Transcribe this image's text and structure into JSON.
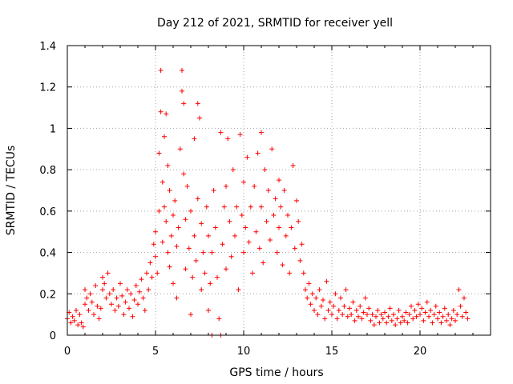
{
  "chart_data": {
    "type": "scatter",
    "title": "Day 212 of 2021, SRMTID for receiver yell",
    "xlabel": "GPS time / hours",
    "ylabel": "SRMTID / TECUs",
    "xlim": [
      0,
      24
    ],
    "ylim": [
      0,
      1.4
    ],
    "x_ticks": [
      0,
      5,
      10,
      15,
      20
    ],
    "y_ticks": [
      0,
      0.2,
      0.4,
      0.6,
      0.8,
      1,
      1.2,
      1.4
    ],
    "x_tick_labels": [
      "0",
      "5",
      "10",
      "15",
      "20"
    ],
    "y_tick_labels": [
      "0",
      "0.2",
      "0.4",
      "0.6",
      "0.8",
      "1",
      "1.2",
      "1.4"
    ],
    "grid": true,
    "marker": "plus",
    "color": "#ff0000",
    "series": [
      {
        "name": "SRMTID",
        "points": [
          [
            0.0,
            0.08
          ],
          [
            0.1,
            0.11
          ],
          [
            0.2,
            0.06
          ],
          [
            0.3,
            0.09
          ],
          [
            0.4,
            0.07
          ],
          [
            0.5,
            0.12
          ],
          [
            0.6,
            0.05
          ],
          [
            0.7,
            0.1
          ],
          [
            0.8,
            0.06
          ],
          [
            0.9,
            0.04
          ],
          [
            1.0,
            0.15
          ],
          [
            1.0,
            0.22
          ],
          [
            1.1,
            0.18
          ],
          [
            1.2,
            0.12
          ],
          [
            1.3,
            0.2
          ],
          [
            1.4,
            0.16
          ],
          [
            1.5,
            0.1
          ],
          [
            1.6,
            0.24
          ],
          [
            1.7,
            0.14
          ],
          [
            1.8,
            0.08
          ],
          [
            1.9,
            0.13
          ],
          [
            2.0,
            0.22
          ],
          [
            2.0,
            0.28
          ],
          [
            2.1,
            0.25
          ],
          [
            2.2,
            0.18
          ],
          [
            2.3,
            0.3
          ],
          [
            2.4,
            0.2
          ],
          [
            2.5,
            0.15
          ],
          [
            2.6,
            0.22
          ],
          [
            2.7,
            0.12
          ],
          [
            2.8,
            0.18
          ],
          [
            2.9,
            0.14
          ],
          [
            3.0,
            0.25
          ],
          [
            3.1,
            0.19
          ],
          [
            3.2,
            0.1
          ],
          [
            3.3,
            0.16
          ],
          [
            3.4,
            0.22
          ],
          [
            3.5,
            0.13
          ],
          [
            3.6,
            0.2
          ],
          [
            3.7,
            0.09
          ],
          [
            3.8,
            0.17
          ],
          [
            3.9,
            0.24
          ],
          [
            4.0,
            0.15
          ],
          [
            4.1,
            0.21
          ],
          [
            4.2,
            0.27
          ],
          [
            4.3,
            0.18
          ],
          [
            4.4,
            0.12
          ],
          [
            4.5,
            0.3
          ],
          [
            4.6,
            0.22
          ],
          [
            4.7,
            0.35
          ],
          [
            4.8,
            0.28
          ],
          [
            4.9,
            0.44
          ],
          [
            5.0,
            0.5
          ],
          [
            5.0,
            0.38
          ],
          [
            5.1,
            0.3
          ],
          [
            5.2,
            0.6
          ],
          [
            5.2,
            0.88
          ],
          [
            5.3,
            1.28
          ],
          [
            5.3,
            1.08
          ],
          [
            5.4,
            0.74
          ],
          [
            5.4,
            0.45
          ],
          [
            5.5,
            0.96
          ],
          [
            5.5,
            0.62
          ],
          [
            5.6,
            1.07
          ],
          [
            5.6,
            0.55
          ],
          [
            5.7,
            0.82
          ],
          [
            5.7,
            0.4
          ],
          [
            5.8,
            0.7
          ],
          [
            5.8,
            0.33
          ],
          [
            5.9,
            0.48
          ],
          [
            6.0,
            0.58
          ],
          [
            6.0,
            0.25
          ],
          [
            6.1,
            0.65
          ],
          [
            6.2,
            0.43
          ],
          [
            6.2,
            0.18
          ],
          [
            6.3,
            0.52
          ],
          [
            6.4,
            0.9
          ],
          [
            6.5,
            1.28
          ],
          [
            6.5,
            1.18
          ],
          [
            6.6,
            1.12
          ],
          [
            6.6,
            0.78
          ],
          [
            6.7,
            0.56
          ],
          [
            6.7,
            0.32
          ],
          [
            6.8,
            0.72
          ],
          [
            6.9,
            0.42
          ],
          [
            7.0,
            0.6
          ],
          [
            7.0,
            0.1
          ],
          [
            7.1,
            0.28
          ],
          [
            7.2,
            0.95
          ],
          [
            7.2,
            0.48
          ],
          [
            7.3,
            0.36
          ],
          [
            7.4,
            1.12
          ],
          [
            7.4,
            0.66
          ],
          [
            7.5,
            1.05
          ],
          [
            7.6,
            0.54
          ],
          [
            7.6,
            0.22
          ],
          [
            7.7,
            0.4
          ],
          [
            7.8,
            0.3
          ],
          [
            7.9,
            0.62
          ],
          [
            8.0,
            0.48
          ],
          [
            8.0,
            0.12
          ],
          [
            8.1,
            0.25
          ],
          [
            8.2,
            0.0
          ],
          [
            8.2,
            0.4
          ],
          [
            8.3,
            0.7
          ],
          [
            8.4,
            0.52
          ],
          [
            8.5,
            0.28
          ],
          [
            8.6,
            0.08
          ],
          [
            8.7,
            0.98
          ],
          [
            8.7,
            0.0
          ],
          [
            8.8,
            0.44
          ],
          [
            8.9,
            0.62
          ],
          [
            9.0,
            0.72
          ],
          [
            9.0,
            0.32
          ],
          [
            9.1,
            0.95
          ],
          [
            9.2,
            0.55
          ],
          [
            9.3,
            0.38
          ],
          [
            9.4,
            0.8
          ],
          [
            9.5,
            0.48
          ],
          [
            9.6,
            0.62
          ],
          [
            9.7,
            0.22
          ],
          [
            9.8,
            0.97
          ],
          [
            9.9,
            0.58
          ],
          [
            10.0,
            0.74
          ],
          [
            10.0,
            0.4
          ],
          [
            10.1,
            0.52
          ],
          [
            10.2,
            0.86
          ],
          [
            10.3,
            0.45
          ],
          [
            10.4,
            0.62
          ],
          [
            10.5,
            0.3
          ],
          [
            10.6,
            0.72
          ],
          [
            10.7,
            0.5
          ],
          [
            10.8,
            0.88
          ],
          [
            10.9,
            0.42
          ],
          [
            11.0,
            0.98
          ],
          [
            11.0,
            0.62
          ],
          [
            11.1,
            0.35
          ],
          [
            11.2,
            0.8
          ],
          [
            11.3,
            0.55
          ],
          [
            11.4,
            0.7
          ],
          [
            11.5,
            0.46
          ],
          [
            11.6,
            0.9
          ],
          [
            11.7,
            0.58
          ],
          [
            11.8,
            0.66
          ],
          [
            11.9,
            0.4
          ],
          [
            12.0,
            0.75
          ],
          [
            12.0,
            0.52
          ],
          [
            12.1,
            0.62
          ],
          [
            12.2,
            0.34
          ],
          [
            12.3,
            0.7
          ],
          [
            12.4,
            0.48
          ],
          [
            12.5,
            0.58
          ],
          [
            12.6,
            0.3
          ],
          [
            12.7,
            0.52
          ],
          [
            12.8,
            0.82
          ],
          [
            12.9,
            0.42
          ],
          [
            13.0,
            0.65
          ],
          [
            13.1,
            0.55
          ],
          [
            13.2,
            0.36
          ],
          [
            13.3,
            0.44
          ],
          [
            13.4,
            0.3
          ],
          [
            13.5,
            0.22
          ],
          [
            13.6,
            0.18
          ],
          [
            13.7,
            0.25
          ],
          [
            13.8,
            0.15
          ],
          [
            13.9,
            0.2
          ],
          [
            14.0,
            0.12
          ],
          [
            14.1,
            0.18
          ],
          [
            14.2,
            0.1
          ],
          [
            14.3,
            0.22
          ],
          [
            14.4,
            0.14
          ],
          [
            14.5,
            0.17
          ],
          [
            14.6,
            0.08
          ],
          [
            14.7,
            0.26
          ],
          [
            14.8,
            0.12
          ],
          [
            14.9,
            0.16
          ],
          [
            15.0,
            0.1
          ],
          [
            15.1,
            0.14
          ],
          [
            15.2,
            0.2
          ],
          [
            15.3,
            0.08
          ],
          [
            15.4,
            0.12
          ],
          [
            15.5,
            0.18
          ],
          [
            15.6,
            0.1
          ],
          [
            15.7,
            0.14
          ],
          [
            15.8,
            0.22
          ],
          [
            15.9,
            0.09
          ],
          [
            16.0,
            0.13
          ],
          [
            16.1,
            0.1
          ],
          [
            16.2,
            0.16
          ],
          [
            16.3,
            0.07
          ],
          [
            16.4,
            0.12
          ],
          [
            16.5,
            0.09
          ],
          [
            16.6,
            0.14
          ],
          [
            16.7,
            0.08
          ],
          [
            16.8,
            0.11
          ],
          [
            16.9,
            0.18
          ],
          [
            17.0,
            0.1
          ],
          [
            17.1,
            0.13
          ],
          [
            17.2,
            0.07
          ],
          [
            17.3,
            0.1
          ],
          [
            17.4,
            0.05
          ],
          [
            17.5,
            0.09
          ],
          [
            17.6,
            0.12
          ],
          [
            17.7,
            0.06
          ],
          [
            17.8,
            0.1
          ],
          [
            17.9,
            0.08
          ],
          [
            18.0,
            0.11
          ],
          [
            18.1,
            0.06
          ],
          [
            18.2,
            0.09
          ],
          [
            18.3,
            0.13
          ],
          [
            18.4,
            0.07
          ],
          [
            18.5,
            0.1
          ],
          [
            18.6,
            0.05
          ],
          [
            18.7,
            0.08
          ],
          [
            18.8,
            0.12
          ],
          [
            18.9,
            0.06
          ],
          [
            19.0,
            0.09
          ],
          [
            19.1,
            0.07
          ],
          [
            19.2,
            0.11
          ],
          [
            19.3,
            0.06
          ],
          [
            19.4,
            0.1
          ],
          [
            19.5,
            0.14
          ],
          [
            19.6,
            0.08
          ],
          [
            19.7,
            0.12
          ],
          [
            19.8,
            0.09
          ],
          [
            19.9,
            0.15
          ],
          [
            20.0,
            0.1
          ],
          [
            20.1,
            0.13
          ],
          [
            20.2,
            0.07
          ],
          [
            20.3,
            0.11
          ],
          [
            20.4,
            0.16
          ],
          [
            20.5,
            0.09
          ],
          [
            20.6,
            0.12
          ],
          [
            20.7,
            0.06
          ],
          [
            20.8,
            0.1
          ],
          [
            20.9,
            0.14
          ],
          [
            21.0,
            0.08
          ],
          [
            21.1,
            0.11
          ],
          [
            21.2,
            0.06
          ],
          [
            21.3,
            0.09
          ],
          [
            21.4,
            0.13
          ],
          [
            21.5,
            0.07
          ],
          [
            21.6,
            0.1
          ],
          [
            21.7,
            0.05
          ],
          [
            21.8,
            0.08
          ],
          [
            21.9,
            0.12
          ],
          [
            22.0,
            0.07
          ],
          [
            22.1,
            0.1
          ],
          [
            22.2,
            0.22
          ],
          [
            22.3,
            0.14
          ],
          [
            22.4,
            0.09
          ],
          [
            22.5,
            0.18
          ],
          [
            22.6,
            0.11
          ],
          [
            22.7,
            0.08
          ]
        ]
      }
    ]
  }
}
